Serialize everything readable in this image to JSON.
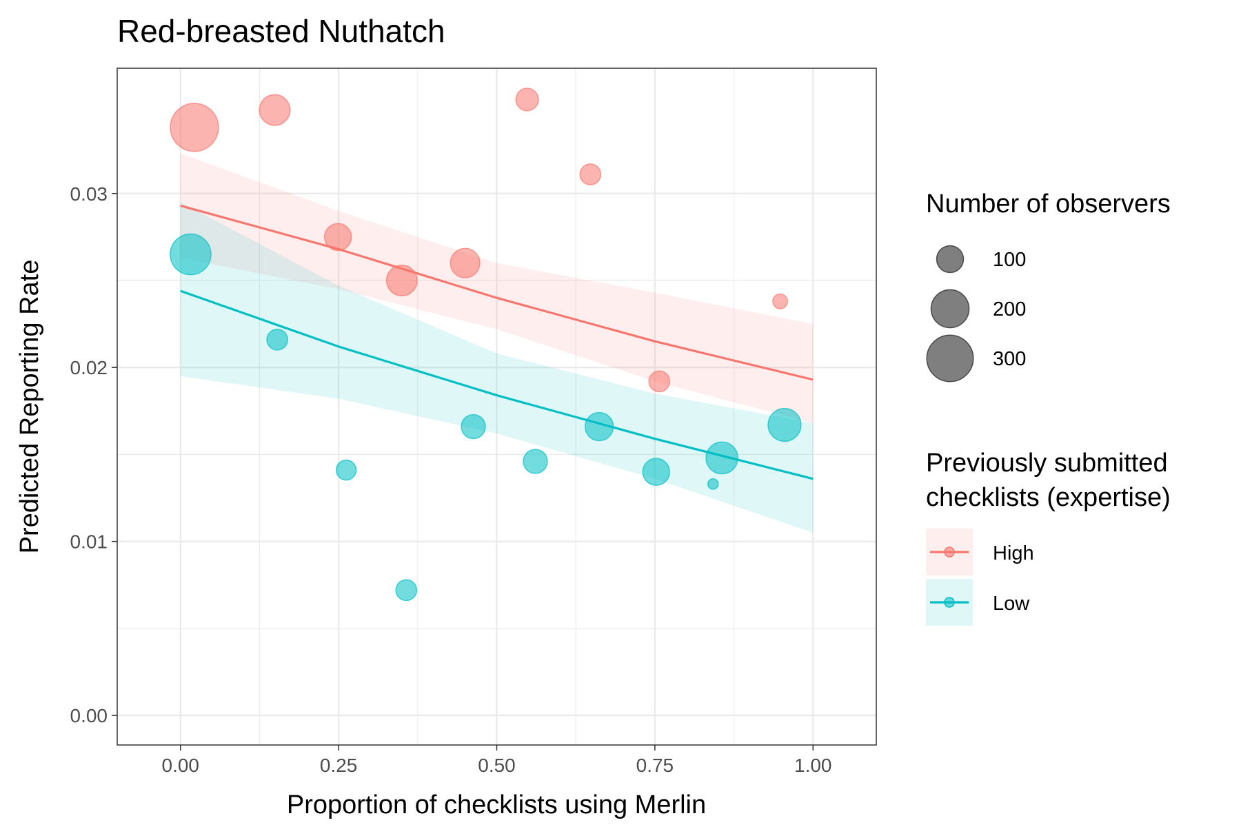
{
  "chart_data": {
    "type": "scatter",
    "title": "Red-breasted Nuthatch",
    "xlabel": "Proportion of checklists using Merlin",
    "ylabel": "Predicted Reporting Rate",
    "xlim": [
      -0.1,
      1.1
    ],
    "ylim": [
      -0.0017,
      0.0372
    ],
    "x_ticks": [
      0,
      0.25,
      0.5,
      0.75,
      1
    ],
    "x_tick_labels": [
      "0.00",
      "0.25",
      "0.50",
      "0.75",
      "1.00"
    ],
    "y_ticks": [
      0,
      0.01,
      0.02,
      0.03
    ],
    "y_tick_labels": [
      "0.00",
      "0.01",
      "0.02",
      "0.03"
    ],
    "grid": true,
    "size_legend": {
      "title": "Number of observers",
      "entries": [
        {
          "label": "100",
          "value": 100
        },
        {
          "label": "200",
          "value": 200
        },
        {
          "label": "300",
          "value": 300
        }
      ]
    },
    "color_legend": {
      "title_lines": [
        "Previously submitted",
        "checklists (expertise)"
      ],
      "position": "right"
    },
    "series": [
      {
        "name": "High",
        "color": "#F8766D",
        "points": [
          {
            "x": 0.022,
            "y": 0.0338,
            "n": 320
          },
          {
            "x": 0.149,
            "y": 0.0348,
            "n": 130
          },
          {
            "x": 0.249,
            "y": 0.0275,
            "n": 100
          },
          {
            "x": 0.35,
            "y": 0.025,
            "n": 130
          },
          {
            "x": 0.45,
            "y": 0.026,
            "n": 120
          },
          {
            "x": 0.548,
            "y": 0.0354,
            "n": 70
          },
          {
            "x": 0.648,
            "y": 0.0311,
            "n": 60
          },
          {
            "x": 0.757,
            "y": 0.0192,
            "n": 60
          },
          {
            "x": 0.948,
            "y": 0.0238,
            "n": 30
          }
        ],
        "fit": [
          {
            "x": 0.0,
            "y": 0.0293,
            "lo": 0.0263,
            "hi": 0.0323
          },
          {
            "x": 0.25,
            "y": 0.0268,
            "lo": 0.0245,
            "hi": 0.029
          },
          {
            "x": 0.5,
            "y": 0.024,
            "lo": 0.0222,
            "hi": 0.026
          },
          {
            "x": 0.75,
            "y": 0.0215,
            "lo": 0.0192,
            "hi": 0.0243
          },
          {
            "x": 1.0,
            "y": 0.0193,
            "lo": 0.0168,
            "hi": 0.0225
          }
        ]
      },
      {
        "name": "Low",
        "color": "#00BFC4",
        "points": [
          {
            "x": 0.016,
            "y": 0.0265,
            "n": 230
          },
          {
            "x": 0.153,
            "y": 0.0216,
            "n": 60
          },
          {
            "x": 0.262,
            "y": 0.0141,
            "n": 55
          },
          {
            "x": 0.357,
            "y": 0.0072,
            "n": 60
          },
          {
            "x": 0.463,
            "y": 0.0166,
            "n": 80
          },
          {
            "x": 0.561,
            "y": 0.0146,
            "n": 80
          },
          {
            "x": 0.662,
            "y": 0.0166,
            "n": 110
          },
          {
            "x": 0.752,
            "y": 0.014,
            "n": 100
          },
          {
            "x": 0.842,
            "y": 0.0133,
            "n": 15
          },
          {
            "x": 0.856,
            "y": 0.0148,
            "n": 140
          },
          {
            "x": 0.955,
            "y": 0.0167,
            "n": 150
          }
        ],
        "fit": [
          {
            "x": 0.0,
            "y": 0.0244,
            "lo": 0.0195,
            "hi": 0.0295
          },
          {
            "x": 0.25,
            "y": 0.0212,
            "lo": 0.0182,
            "hi": 0.0247
          },
          {
            "x": 0.5,
            "y": 0.0184,
            "lo": 0.0162,
            "hi": 0.0208
          },
          {
            "x": 0.75,
            "y": 0.0159,
            "lo": 0.0136,
            "hi": 0.0185
          },
          {
            "x": 1.0,
            "y": 0.0136,
            "lo": 0.0105,
            "hi": 0.0168
          }
        ]
      }
    ]
  }
}
